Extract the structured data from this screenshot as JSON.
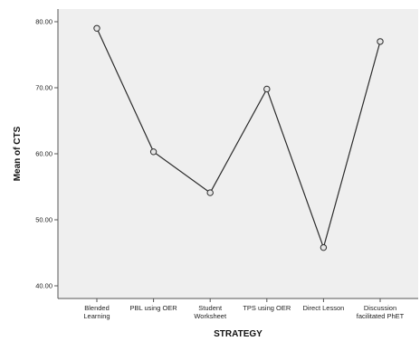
{
  "chart_data": {
    "type": "line",
    "title": "",
    "xlabel": "STRATEGY",
    "ylabel": "Mean of CTS",
    "categories": [
      [
        "Blended",
        "Learning"
      ],
      [
        "PBL using OER"
      ],
      [
        "Student",
        "Worksheet"
      ],
      [
        "TPS using OER"
      ],
      [
        "Direct Lesson"
      ],
      [
        "Discussion",
        "facilitated PhET"
      ]
    ],
    "series": [
      {
        "values": [
          79.0,
          60.3,
          54.1,
          69.8,
          45.8,
          77.0
        ]
      }
    ],
    "ylim": [
      40.0,
      80.0
    ],
    "yticks": [
      "40.00",
      "50.00",
      "60.00",
      "70.00",
      "80.00"
    ],
    "grid": false,
    "legend": "none",
    "colors": {
      "plot_background": "#efefef",
      "line": "#2b2b2b",
      "marker_fill": "#e6e6e6",
      "axis": "#555555"
    }
  }
}
